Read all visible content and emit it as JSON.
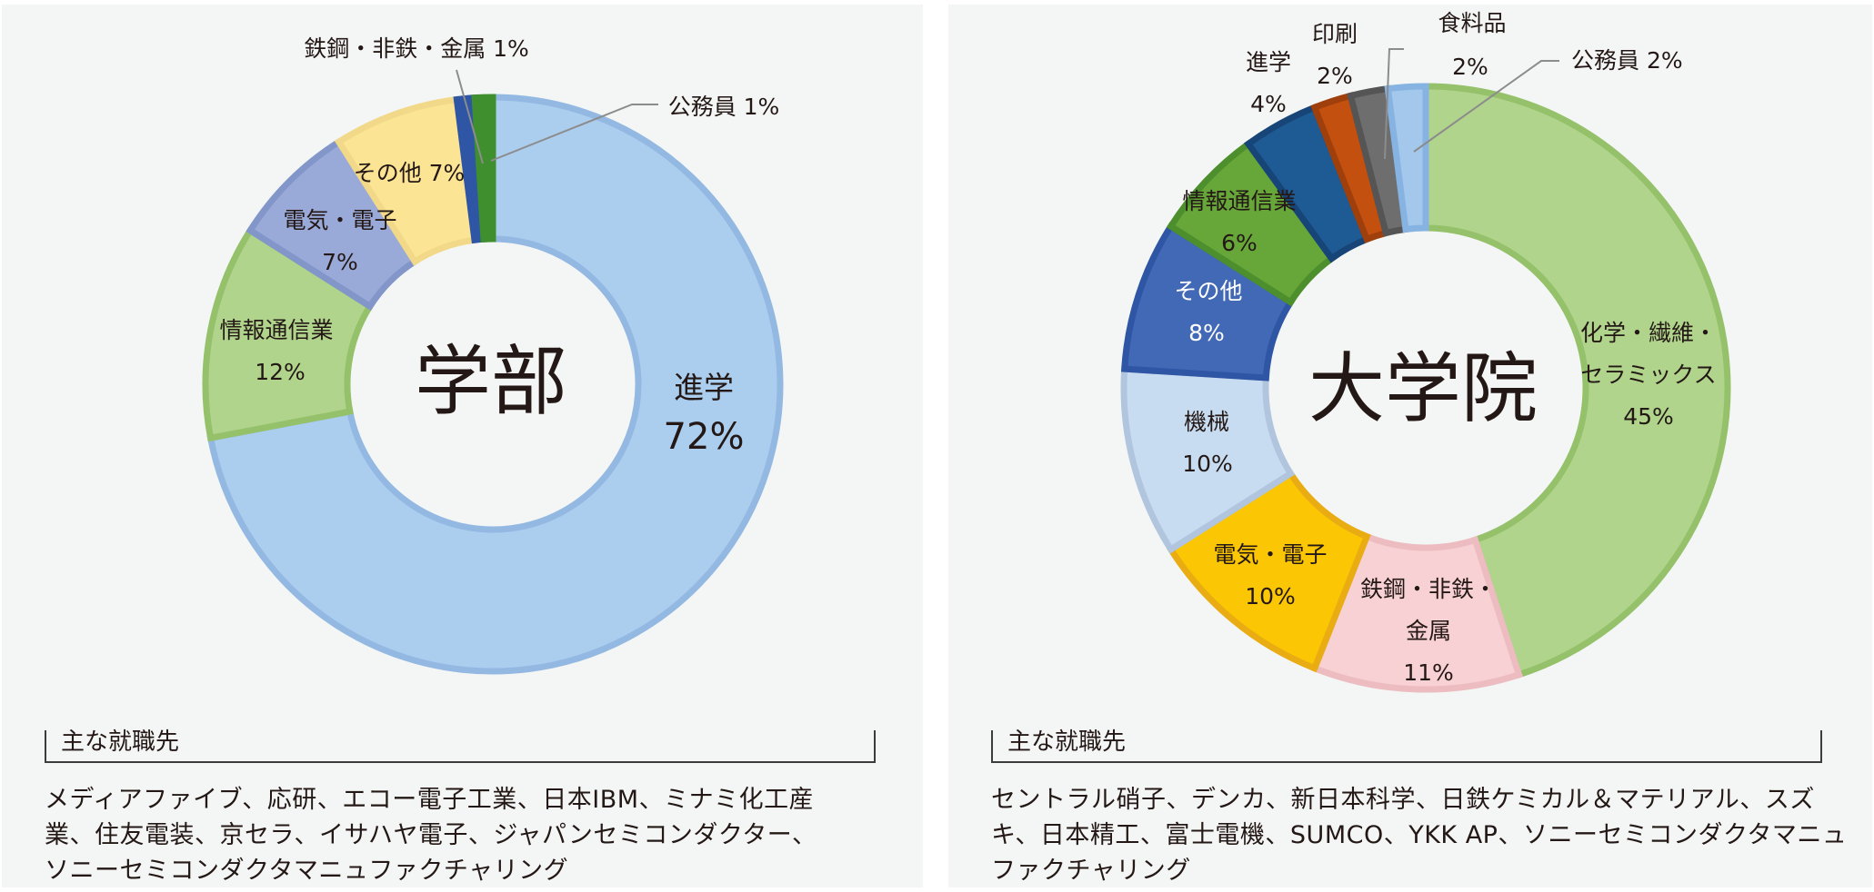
{
  "charts_meta": {
    "left_title": "学部",
    "right_title": "大学院"
  },
  "chart_data": [
    {
      "type": "pie",
      "donut": true,
      "title": "学部",
      "segments": [
        {
          "label": "進学",
          "value": 72,
          "fill": "#abcdee",
          "stroke": "#93b9e3"
        },
        {
          "label": "情報通信業",
          "value": 12,
          "fill": "#b0d48b",
          "stroke": "#95c16b"
        },
        {
          "label": "電気・電子",
          "value": 7,
          "fill": "#99a9d8",
          "stroke": "#8396c9"
        },
        {
          "label": "その他",
          "value": 7,
          "fill": "#fbe594",
          "stroke": "#f2d98a"
        },
        {
          "label": "鉄鋼・非鉄・金属",
          "value": 1,
          "fill": "#2f55a5",
          "stroke": "#2f55a5"
        },
        {
          "label": "公務員",
          "value": 1,
          "fill": "#3f8f2e",
          "stroke": "#3f8f2e"
        }
      ],
      "labels": [
        {
          "line1": "進学",
          "line2": "72%"
        },
        {
          "line1": "情報通信業",
          "line2": "12%"
        },
        {
          "line1": "電気・電子",
          "line2": "7%"
        },
        {
          "line1": "その他 7%"
        },
        {
          "line1": "鉄鋼・非鉄・金属 1%"
        },
        {
          "line1": "公務員 1%"
        }
      ]
    },
    {
      "type": "pie",
      "donut": true,
      "title": "大学院",
      "segments": [
        {
          "label": "化学・繊維・セラミックス",
          "value": 45,
          "fill": "#b0d48b",
          "stroke": "#95c16b"
        },
        {
          "label": "鉄鋼・非鉄・金属",
          "value": 11,
          "fill": "#f7d1d3",
          "stroke": "#ecbcc0"
        },
        {
          "label": "電気・電子",
          "value": 10,
          "fill": "#fbc603",
          "stroke": "#e9ad13"
        },
        {
          "label": "機械",
          "value": 10,
          "fill": "#c7dcf0",
          "stroke": "#b1c6de"
        },
        {
          "label": "その他",
          "value": 8,
          "fill": "#4269b6",
          "stroke": "#2f55a5"
        },
        {
          "label": "情報通信業",
          "value": 6,
          "fill": "#67a639",
          "stroke": "#4d8f2c"
        },
        {
          "label": "進学",
          "value": 4,
          "fill": "#1e5a94",
          "stroke": "#174577"
        },
        {
          "label": "印刷",
          "value": 2,
          "fill": "#c45010",
          "stroke": "#9f3f0c"
        },
        {
          "label": "食料品",
          "value": 2,
          "fill": "#6e6e6e",
          "stroke": "#555555"
        },
        {
          "label": "公務員",
          "value": 2,
          "fill": "#a3c8ec",
          "stroke": "#86b3e2"
        }
      ],
      "labels": [
        {
          "line1": "化学・繊維・",
          "line2": "セラミックス",
          "line3": "45%"
        },
        {
          "line1": "鉄鋼・非鉄・",
          "line2": "金属",
          "line3": "11%"
        },
        {
          "line1": "電気・電子",
          "line2": "10%"
        },
        {
          "line1": "機械",
          "line2": "10%"
        },
        {
          "line1": "その他",
          "line2": "8%"
        },
        {
          "line1": "情報通信業",
          "line2": "6%"
        },
        {
          "line1": "進学",
          "line2": "4%"
        },
        {
          "line1": "印刷",
          "line2": "2%"
        },
        {
          "line1": "食料品",
          "line2": "2%"
        },
        {
          "line1": "公務員 2%"
        }
      ]
    }
  ],
  "left_box": {
    "heading": "主な就職先",
    "lines": [
      "メディアファイブ、応研、エコー電子工業、日本IBM、ミナミ化工産",
      "業、住友電装、京セラ、イサハヤ電子、ジャパンセミコンダクター、",
      "ソニーセミコンダクタマニュファクチャリング"
    ]
  },
  "right_box": {
    "heading": "主な就職先",
    "lines": [
      "セントラル硝子、デンカ、新日本科学、日鉄ケミカル＆マテリアル、スズ",
      "キ、日本精工、富士電機、SUMCO、YKK AP、ソニーセミコンダクタマニュ",
      "ファクチャリング"
    ]
  }
}
